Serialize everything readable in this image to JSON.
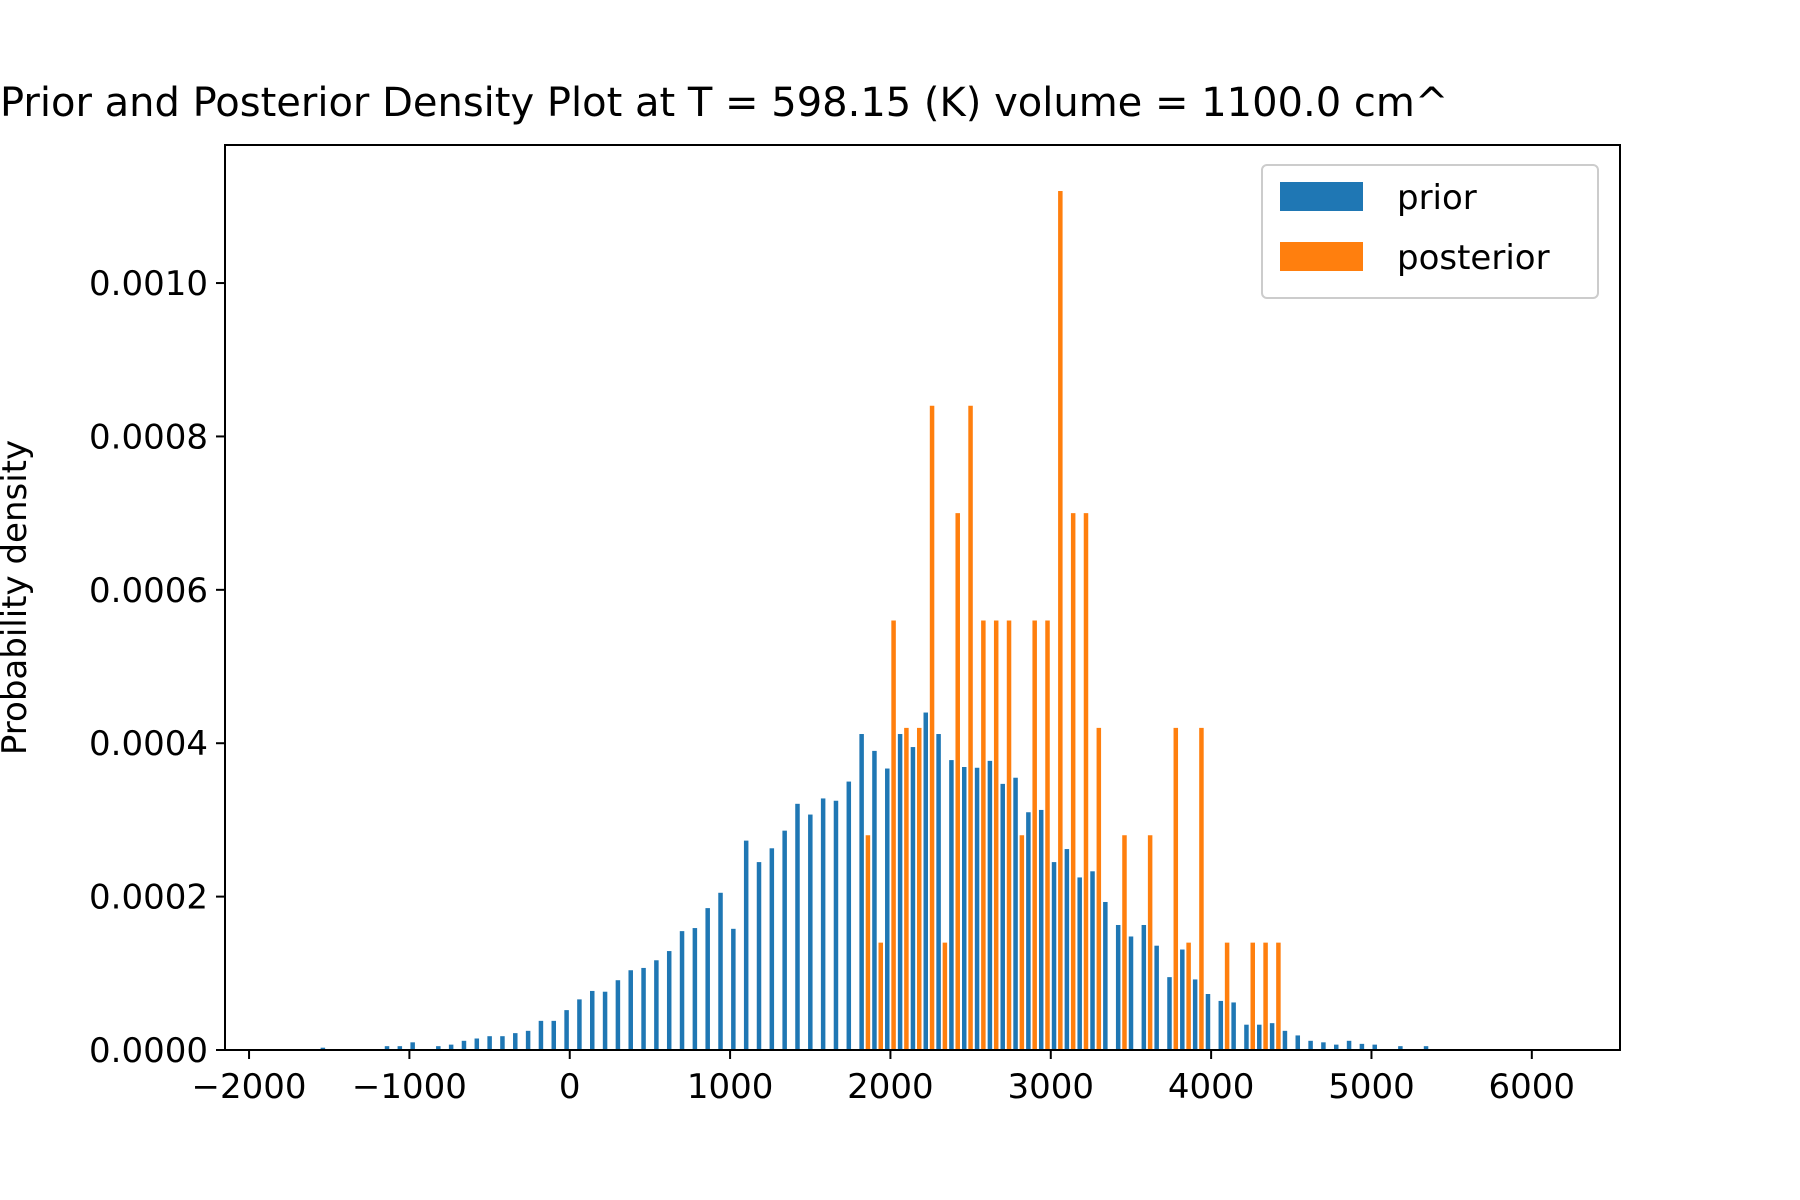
{
  "chart_data": {
    "type": "bar",
    "title": "Prior and Posterior Density Plot at T = 598.15 (K) volume = 1100.0 cm^",
    "xlabel": "",
    "ylabel": "Probability density",
    "xlim": [
      -2150,
      6550
    ],
    "ylim": [
      0,
      0.00118
    ],
    "xticks": [
      -2000,
      -1000,
      0,
      1000,
      2000,
      3000,
      4000,
      5000,
      6000
    ],
    "xtick_labels": [
      "−2000",
      "−1000",
      "0",
      "1000",
      "2000",
      "3000",
      "4000",
      "5000",
      "6000"
    ],
    "yticks": [
      0,
      0.0002,
      0.0004,
      0.0006,
      0.0008,
      0.001
    ],
    "ytick_labels": [
      "0.0000",
      "0.0002",
      "0.0004",
      "0.0006",
      "0.0008",
      "0.0010"
    ],
    "grid": false,
    "legend_position": "top-right",
    "series": [
      {
        "name": "prior",
        "color": "#1f77b4",
        "x": [
          -1520,
          -1120,
          -1040,
          -960,
          -800,
          -720,
          -640,
          -560,
          -480,
          -400,
          -320,
          -240,
          -160,
          -80,
          0,
          80,
          160,
          240,
          320,
          400,
          480,
          560,
          640,
          720,
          800,
          880,
          960,
          1040,
          1120,
          1200,
          1280,
          1360,
          1440,
          1520,
          1600,
          1680,
          1760,
          1840,
          1920,
          2000,
          2080,
          2160,
          2240,
          2320,
          2400,
          2480,
          2560,
          2640,
          2720,
          2800,
          2880,
          2960,
          3040,
          3120,
          3200,
          3280,
          3360,
          3440,
          3520,
          3600,
          3680,
          3760,
          3840,
          3920,
          4000,
          4080,
          4160,
          4240,
          4320,
          4400,
          4480,
          4560,
          4640,
          4720,
          4800,
          4880,
          4960,
          5040,
          5200,
          5360
        ],
        "values": [
          3e-06,
          5e-06,
          5e-06,
          1e-05,
          5e-06,
          7e-06,
          1.2e-05,
          1.5e-05,
          1.8e-05,
          1.8e-05,
          2.2e-05,
          2.5e-05,
          3.8e-05,
          3.8e-05,
          5.2e-05,
          6.6e-05,
          7.7e-05,
          7.6e-05,
          9.1e-05,
          0.000104,
          0.000107,
          0.000117,
          0.000129,
          0.000155,
          0.000159,
          0.000185,
          0.000205,
          0.000158,
          0.000273,
          0.000245,
          0.000263,
          0.000286,
          0.000321,
          0.000307,
          0.000328,
          0.000325,
          0.00035,
          0.000412,
          0.00039,
          0.000367,
          0.000412,
          0.000395,
          0.00044,
          0.000412,
          0.000378,
          0.000369,
          0.000368,
          0.000377,
          0.000347,
          0.000355,
          0.00031,
          0.000313,
          0.000245,
          0.000262,
          0.000225,
          0.000233,
          0.000193,
          0.000163,
          0.000148,
          0.000163,
          0.000136,
          9.5e-05,
          0.000131,
          9.2e-05,
          7.3e-05,
          6.4e-05,
          6.2e-05,
          3.3e-05,
          3.3e-05,
          3.5e-05,
          2.5e-05,
          1.9e-05,
          1.2e-05,
          1e-05,
          7e-06,
          1.2e-05,
          8e-06,
          7e-06,
          5e-06,
          5e-06
        ]
      },
      {
        "name": "posterior",
        "color": "#ff7f0e",
        "x": [
          1840,
          1920,
          2000,
          2080,
          2160,
          2240,
          2320,
          2400,
          2480,
          2560,
          2640,
          2720,
          2800,
          2880,
          2960,
          3040,
          3120,
          3200,
          3280,
          3440,
          3600,
          3760,
          3840,
          3920,
          4080,
          4240,
          4320,
          4400
        ],
        "values": [
          0.00028,
          0.00014,
          0.00056,
          0.00042,
          0.00042,
          0.00084,
          0.00014,
          0.0007,
          0.00084,
          0.00056,
          0.00056,
          0.00056,
          0.00028,
          0.00056,
          0.00056,
          0.00112,
          0.0007,
          0.0007,
          0.00042,
          0.00028,
          0.00028,
          0.00042,
          0.00014,
          0.00042,
          0.00014,
          0.00014,
          0.00014,
          0.00014
        ]
      }
    ]
  }
}
